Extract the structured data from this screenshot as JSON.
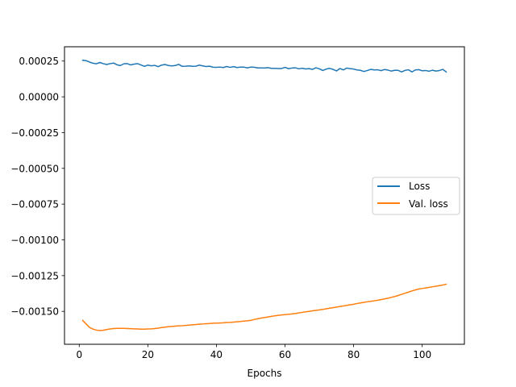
{
  "chart_data": {
    "type": "line",
    "title": "",
    "xlabel": "Epochs",
    "ylabel": "",
    "xlim": [
      -4.3,
      112.3
    ],
    "ylim": [
      -0.00173,
      0.00035
    ],
    "x_ticks": [
      0,
      20,
      40,
      60,
      80,
      100
    ],
    "y_ticks": [
      0.00025,
      0.0,
      -0.00025,
      -0.0005,
      -0.00075,
      -0.001,
      -0.00125,
      -0.0015
    ],
    "x_tick_labels": [
      "0",
      "20",
      "40",
      "60",
      "80",
      "100"
    ],
    "y_tick_labels": [
      "0.00025",
      "0.00000",
      "−0.00025",
      "−0.00050",
      "−0.00075",
      "−0.00100",
      "−0.00125",
      "−0.00150"
    ],
    "grid": false,
    "legend_position": "center-right",
    "series": [
      {
        "name": "Loss",
        "color": "#1f77b4",
        "x": [
          1,
          2,
          3,
          4,
          5,
          6,
          7,
          8,
          9,
          10,
          11,
          12,
          13,
          14,
          15,
          16,
          17,
          18,
          19,
          20,
          21,
          22,
          23,
          24,
          25,
          26,
          27,
          28,
          29,
          30,
          31,
          32,
          33,
          34,
          35,
          36,
          37,
          38,
          39,
          40,
          41,
          42,
          43,
          44,
          45,
          46,
          47,
          48,
          49,
          50,
          51,
          52,
          53,
          54,
          55,
          56,
          57,
          58,
          59,
          60,
          61,
          62,
          63,
          64,
          65,
          66,
          67,
          68,
          69,
          70,
          71,
          72,
          73,
          74,
          75,
          76,
          77,
          78,
          79,
          80,
          81,
          82,
          83,
          84,
          85,
          86,
          87,
          88,
          89,
          90,
          91,
          92,
          93,
          94,
          95,
          96,
          97,
          98,
          99,
          100,
          101,
          102,
          103,
          104,
          105,
          106,
          107
        ],
        "y": [
          0.000256,
          0.000253,
          0.000243,
          0.000235,
          0.000231,
          0.00024,
          0.000232,
          0.000226,
          0.000232,
          0.000236,
          0.000224,
          0.000219,
          0.000231,
          0.000232,
          0.000223,
          0.000229,
          0.000232,
          0.000223,
          0.000213,
          0.000222,
          0.000217,
          0.00022,
          0.000211,
          0.000222,
          0.000226,
          0.000219,
          0.000216,
          0.000219,
          0.000227,
          0.000213,
          0.000214,
          0.000216,
          0.000213,
          0.000214,
          0.000222,
          0.000216,
          0.000212,
          0.000214,
          0.000207,
          0.000206,
          0.000208,
          0.000205,
          0.000212,
          0.000206,
          0.000211,
          0.000205,
          0.000208,
          0.000208,
          0.000202,
          0.000208,
          0.000207,
          0.000202,
          0.000202,
          0.000201,
          0.000204,
          0.000199,
          0.000199,
          0.000198,
          0.000198,
          0.000206,
          0.000197,
          0.000201,
          0.000203,
          0.000196,
          0.0002,
          0.000195,
          0.000197,
          0.000192,
          0.000203,
          0.000196,
          0.000184,
          0.000194,
          0.000199,
          0.000192,
          0.000181,
          0.000198,
          0.000188,
          0.000201,
          0.000197,
          0.000194,
          0.000188,
          0.000185,
          0.000177,
          0.000184,
          0.000192,
          0.000188,
          0.000189,
          0.000183,
          0.000191,
          0.000187,
          0.00018,
          0.000186,
          0.000185,
          0.000174,
          0.000185,
          0.000189,
          0.000174,
          0.000188,
          0.00019,
          0.000182,
          0.000184,
          0.000179,
          0.000186,
          0.00018,
          0.000184,
          0.000192,
          0.000174
        ]
      },
      {
        "name": "Val. loss",
        "color": "#ff7f0e",
        "x": [
          1,
          2,
          3,
          4,
          5,
          6,
          7,
          8,
          9,
          10,
          11,
          12,
          13,
          14,
          15,
          16,
          17,
          18,
          19,
          20,
          21,
          22,
          23,
          24,
          25,
          26,
          27,
          28,
          29,
          30,
          31,
          32,
          33,
          34,
          35,
          36,
          37,
          38,
          39,
          40,
          41,
          42,
          43,
          44,
          45,
          46,
          47,
          48,
          49,
          50,
          51,
          52,
          53,
          54,
          55,
          56,
          57,
          58,
          59,
          60,
          61,
          62,
          63,
          64,
          65,
          66,
          67,
          68,
          69,
          70,
          71,
          72,
          73,
          74,
          75,
          76,
          77,
          78,
          79,
          80,
          81,
          82,
          83,
          84,
          85,
          86,
          87,
          88,
          89,
          90,
          91,
          92,
          93,
          94,
          95,
          96,
          97,
          98,
          99,
          100,
          101,
          102,
          103,
          104,
          105,
          106,
          107
        ],
        "y": [
          -0.001563,
          -0.001588,
          -0.001612,
          -0.001624,
          -0.001631,
          -0.001634,
          -0.001632,
          -0.001627,
          -0.001623,
          -0.00162,
          -0.001619,
          -0.001619,
          -0.001619,
          -0.00162,
          -0.001621,
          -0.001622,
          -0.001623,
          -0.001624,
          -0.001624,
          -0.001623,
          -0.001622,
          -0.00162,
          -0.001617,
          -0.001613,
          -0.00161,
          -0.001607,
          -0.001605,
          -0.001603,
          -0.001601,
          -0.0016,
          -0.001598,
          -0.001596,
          -0.001594,
          -0.001592,
          -0.00159,
          -0.001588,
          -0.001586,
          -0.001585,
          -0.001583,
          -0.001582,
          -0.001581,
          -0.00158,
          -0.001578,
          -0.001577,
          -0.001575,
          -0.001573,
          -0.001571,
          -0.001568,
          -0.001566,
          -0.001563,
          -0.001557,
          -0.001552,
          -0.001547,
          -0.001543,
          -0.001539,
          -0.001535,
          -0.001531,
          -0.001528,
          -0.001525,
          -0.001523,
          -0.001521,
          -0.001518,
          -0.001515,
          -0.001511,
          -0.001507,
          -0.001503,
          -0.0015,
          -0.001496,
          -0.001493,
          -0.00149,
          -0.001486,
          -0.001482,
          -0.001478,
          -0.001474,
          -0.00147,
          -0.001466,
          -0.001462,
          -0.001458,
          -0.001454,
          -0.00145,
          -0.001445,
          -0.001441,
          -0.001437,
          -0.001433,
          -0.00143,
          -0.001426,
          -0.001422,
          -0.001418,
          -0.001413,
          -0.001408,
          -0.001402,
          -0.001396,
          -0.001389,
          -0.001381,
          -0.001373,
          -0.001365,
          -0.001357,
          -0.00135,
          -0.001344,
          -0.00134,
          -0.001336,
          -0.001332,
          -0.001328,
          -0.001324,
          -0.00132,
          -0.001316,
          -0.00131
        ]
      }
    ]
  }
}
